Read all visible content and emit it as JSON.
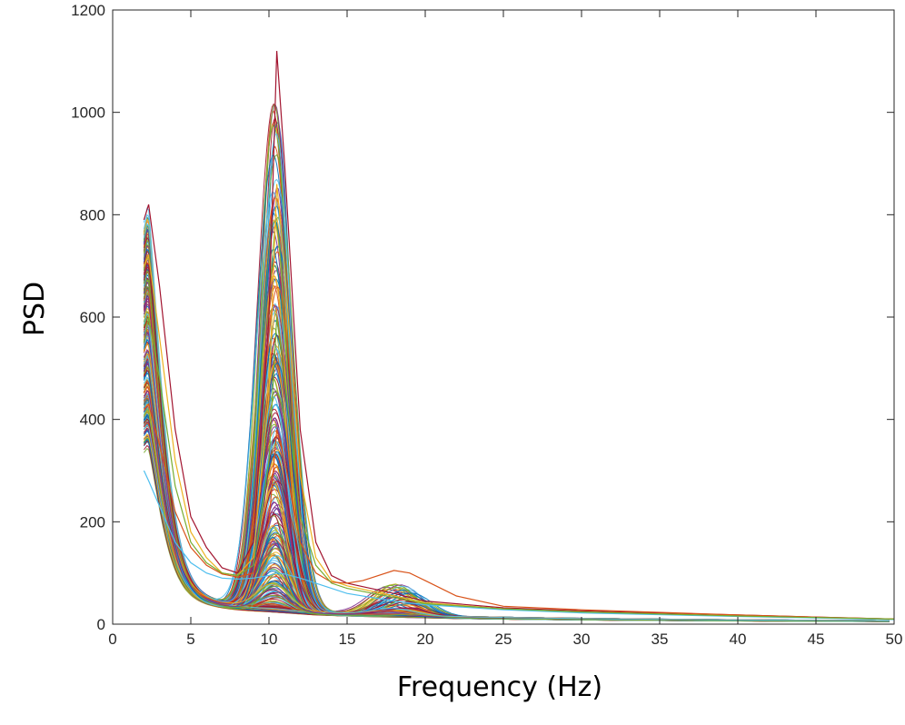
{
  "chart_data": {
    "type": "line",
    "title": "",
    "xlabel": "Frequency (Hz)",
    "ylabel": "PSD",
    "xlim": [
      0,
      50
    ],
    "ylim": [
      0,
      1200
    ],
    "x_ticks": [
      0,
      5,
      10,
      15,
      20,
      25,
      30,
      35,
      40,
      45,
      50
    ],
    "y_ticks": [
      0,
      200,
      400,
      600,
      800,
      1000,
      1200
    ],
    "grid": false,
    "legend": "none",
    "series_count_approx": 300,
    "x_range": [
      2,
      50
    ],
    "features": {
      "low_freq_peak": {
        "x": 2.2,
        "y_range": [
          270,
          820
        ]
      },
      "alpha_peak": {
        "x": 10.5,
        "y_range": [
          80,
          1120
        ]
      },
      "beta_bump": {
        "x": 18.5,
        "y_max": 105
      },
      "tail_y_at_50": 10
    },
    "representative_series": [
      {
        "x": [
          2,
          2.3,
          3,
          4,
          5,
          6,
          7,
          8,
          9,
          10,
          10.5,
          11,
          12,
          13,
          14,
          15,
          18,
          20,
          25,
          30,
          40,
          50
        ],
        "y": [
          790,
          820,
          660,
          380,
          210,
          150,
          110,
          100,
          160,
          600,
          1120,
          900,
          380,
          160,
          95,
          80,
          60,
          45,
          32,
          26,
          18,
          10
        ]
      },
      {
        "x": [
          2,
          2.3,
          3,
          4,
          5,
          6,
          7,
          8,
          9,
          10,
          10.5,
          11,
          12,
          13,
          14,
          15,
          18,
          20,
          25,
          30,
          40,
          50
        ],
        "y": [
          700,
          720,
          560,
          320,
          180,
          130,
          100,
          95,
          130,
          450,
          860,
          700,
          290,
          130,
          85,
          75,
          55,
          42,
          30,
          24,
          16,
          10
        ]
      },
      {
        "x": [
          2,
          2.3,
          3,
          4,
          5,
          6,
          7,
          8,
          9,
          10,
          10.5,
          11,
          12,
          13,
          14,
          15,
          18,
          20,
          25,
          30,
          40,
          50
        ],
        "y": [
          300,
          280,
          230,
          160,
          120,
          100,
          90,
          88,
          90,
          95,
          100,
          98,
          90,
          80,
          70,
          60,
          45,
          38,
          28,
          22,
          15,
          9
        ]
      },
      {
        "x": [
          2,
          2.3,
          3,
          4,
          5,
          6,
          7,
          8,
          9,
          10,
          10.5,
          11,
          12,
          13,
          14,
          15,
          16,
          18,
          19,
          20,
          22,
          25,
          30,
          40,
          50
        ],
        "y": [
          420,
          430,
          350,
          220,
          150,
          115,
          98,
          92,
          100,
          200,
          380,
          320,
          160,
          100,
          82,
          80,
          85,
          105,
          100,
          85,
          55,
          35,
          28,
          18,
          10
        ]
      },
      {
        "x": [
          2,
          2.3,
          3,
          4,
          5,
          6,
          7,
          8,
          9,
          10,
          10.5,
          11,
          12,
          13,
          14,
          15,
          18,
          20,
          25,
          30,
          40,
          50
        ],
        "y": [
          550,
          600,
          480,
          270,
          160,
          120,
          100,
          95,
          115,
          320,
          600,
          480,
          210,
          115,
          80,
          70,
          52,
          40,
          30,
          24,
          16,
          10
        ]
      }
    ]
  }
}
